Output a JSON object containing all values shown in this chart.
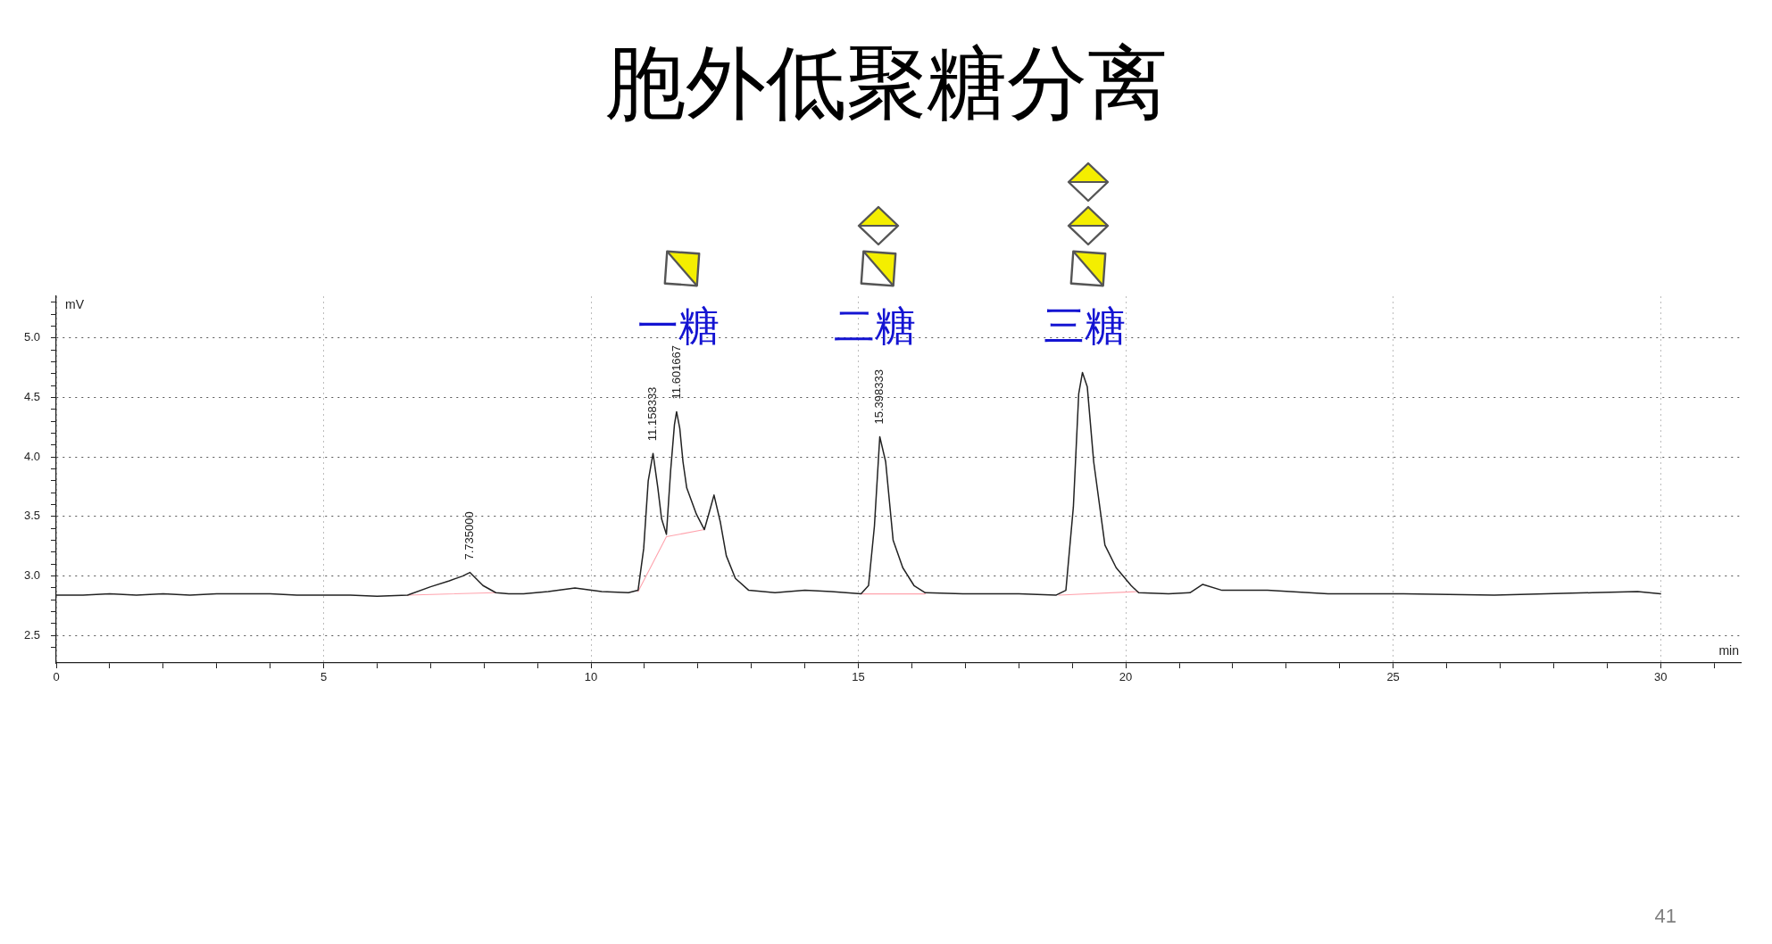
{
  "chart_data": {
    "type": "line",
    "title": "胞外低聚糖分离",
    "xlabel": "min",
    "ylabel": "mV",
    "x": [
      0,
      0.5,
      1,
      1.5,
      2,
      2.5,
      3,
      3.5,
      4,
      4.5,
      5,
      5.5,
      6,
      6.57,
      7,
      7.35,
      7.6,
      7.735,
      7.98,
      8.22,
      8.46,
      8.74,
      9.2,
      9.7,
      10.2,
      10.7,
      10.88,
      10.985,
      11.07,
      11.16,
      11.25,
      11.32,
      11.41,
      11.49,
      11.56,
      11.6,
      11.66,
      11.72,
      11.79,
      11.97,
      12.12,
      12.22,
      12.3,
      12.42,
      12.53,
      12.7,
      12.95,
      13.44,
      14,
      14.49,
      15.05,
      15.19,
      15.3,
      15.4,
      15.51,
      15.65,
      15.83,
      16.04,
      16.25,
      16.95,
      18,
      18.7,
      18.88,
      19.02,
      19.12,
      19.19,
      19.28,
      19.4,
      19.61,
      19.82,
      20.1,
      20.24,
      20.8,
      21.2,
      21.44,
      21.8,
      22.65,
      23.78,
      25.19,
      26.89,
      28.73,
      29.57,
      30
    ],
    "series": [
      {
        "color": "#222222",
        "values": [
          2.84,
          2.84,
          2.85,
          2.84,
          2.85,
          2.84,
          2.85,
          2.85,
          2.85,
          2.84,
          2.84,
          2.84,
          2.83,
          2.84,
          2.91,
          2.96,
          3.0,
          3.03,
          2.92,
          2.86,
          2.85,
          2.85,
          2.87,
          2.9,
          2.87,
          2.86,
          2.88,
          3.23,
          3.8,
          4.03,
          3.74,
          3.48,
          3.35,
          3.89,
          4.27,
          4.38,
          4.24,
          3.96,
          3.74,
          3.52,
          3.39,
          3.55,
          3.68,
          3.45,
          3.17,
          2.98,
          2.88,
          2.86,
          2.88,
          2.87,
          2.85,
          2.92,
          3.42,
          4.17,
          3.96,
          3.3,
          3.07,
          2.92,
          2.86,
          2.85,
          2.85,
          2.84,
          2.88,
          3.58,
          4.53,
          4.71,
          4.59,
          3.96,
          3.26,
          3.07,
          2.92,
          2.86,
          2.85,
          2.86,
          2.93,
          2.88,
          2.88,
          2.85,
          2.85,
          2.84,
          2.86,
          2.87,
          2.85
        ]
      },
      {
        "color": "#ffa3ad",
        "x": [
          6.57,
          8.22,
          9.0,
          10.88,
          11.41,
          12.12,
          13.0,
          15.05,
          16.25,
          17.0,
          18.75,
          20.24
        ],
        "values": [
          2.84,
          2.86,
          null,
          2.87,
          3.33,
          3.39,
          null,
          2.85,
          2.85,
          null,
          2.84,
          2.87
        ]
      }
    ],
    "xlim": [
      0,
      31.5
    ],
    "xticks": [
      0,
      {
        "value": 1,
        "label": null
      },
      {
        "value": 2,
        "label": null
      },
      {
        "value": 3,
        "label": null
      },
      {
        "value": 4,
        "label": null
      },
      5,
      {
        "value": 6,
        "label": null
      },
      {
        "value": 7,
        "label": null
      },
      {
        "value": 8,
        "label": null
      },
      {
        "value": 9,
        "label": null
      },
      10,
      {
        "value": 11,
        "label": null
      },
      {
        "value": 12,
        "label": null
      },
      {
        "value": 13,
        "label": null
      },
      {
        "value": 14,
        "label": null
      },
      15,
      {
        "value": 16,
        "label": null
      },
      {
        "value": 17,
        "label": null
      },
      {
        "value": 18,
        "label": null
      },
      {
        "value": 19,
        "label": null
      },
      20,
      {
        "value": 21,
        "label": null
      },
      {
        "value": 22,
        "label": null
      },
      {
        "value": 23,
        "label": null
      },
      {
        "value": 24,
        "label": null
      },
      25,
      {
        "value": 26,
        "label": null
      },
      {
        "value": 27,
        "label": null
      },
      {
        "value": 28,
        "label": null
      },
      {
        "value": 29,
        "label": null
      },
      30,
      {
        "value": 31,
        "label": null
      }
    ],
    "ylim": [
      2.27,
      5.35
    ],
    "yticks": [
      {
        "value": 2.4,
        "label": null
      },
      2.5,
      {
        "value": 2.6,
        "label": null
      },
      {
        "value": 2.7,
        "label": null
      },
      {
        "value": 2.8,
        "label": null
      },
      {
        "value": 2.9,
        "label": null
      },
      {
        "value": 3,
        "label": "3.0"
      },
      {
        "value": 3.1,
        "label": null
      },
      {
        "value": 3.2,
        "label": null
      },
      {
        "value": 3.3,
        "label": null
      },
      {
        "value": 3.4,
        "label": null
      },
      3.5,
      {
        "value": 3.6,
        "label": null
      },
      {
        "value": 3.7,
        "label": null
      },
      {
        "value": 3.8,
        "label": null
      },
      {
        "value": 3.9,
        "label": null
      },
      {
        "value": 4,
        "label": "4.0"
      },
      {
        "value": 4.1,
        "label": null
      },
      {
        "value": 4.2,
        "label": null
      },
      {
        "value": 4.3,
        "label": null
      },
      {
        "value": 4.4,
        "label": null
      },
      4.5,
      {
        "value": 4.6,
        "label": null
      },
      {
        "value": 4.7,
        "label": null
      },
      {
        "value": 4.8,
        "label": null
      },
      {
        "value": 4.9,
        "label": null
      },
      {
        "value": 5,
        "label": "5.0"
      },
      {
        "value": 5.1,
        "label": null
      },
      {
        "value": 5.2,
        "label": null
      },
      {
        "value": 5.3,
        "label": null
      }
    ],
    "annotations": [
      {
        "text": "7.735000",
        "x": 7.735,
        "y": 3.03
      },
      {
        "text": "11.158333",
        "x": 11.158333,
        "y": 4.03
      },
      {
        "text": "11.601667",
        "x": 11.601667,
        "y": 4.38
      },
      {
        "text": "15.398333",
        "x": 15.398333,
        "y": 4.17
      },
      "一糖",
      "二糖",
      "三糖",
      "41"
    ],
    "grid": true,
    "legend": false,
    "marker": "none",
    "line_style": "solid"
  }
}
